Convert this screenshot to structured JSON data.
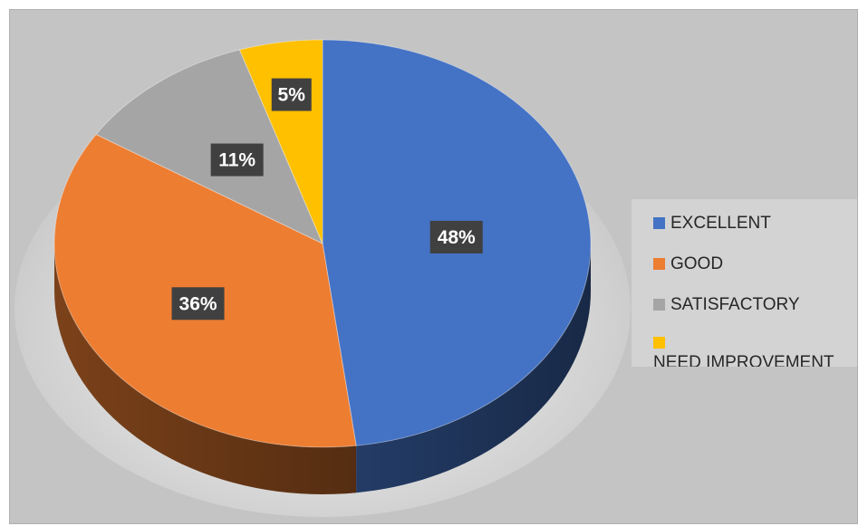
{
  "chart_data": {
    "type": "pie",
    "categories": [
      "EXCELLENT",
      "GOOD",
      "SATISFACTORY",
      "NEED IMPROVEMENT"
    ],
    "values": [
      48,
      36,
      11,
      5
    ],
    "labels": [
      "48%",
      "36%",
      "11%",
      "5%"
    ],
    "colors": [
      "#4472c4",
      "#ed7d31",
      "#a5a5a5",
      "#ffc000"
    ],
    "legend_position": "right",
    "style": "3d"
  },
  "legend": {
    "items": [
      {
        "label": "EXCELLENT",
        "color": "#4472c4"
      },
      {
        "label": "GOOD",
        "color": "#ed7d31"
      },
      {
        "label": "SATISFACTORY",
        "color": "#a5a5a5"
      },
      {
        "label": "NEED IMPROVEMENT",
        "color": "#ffc000"
      }
    ]
  }
}
